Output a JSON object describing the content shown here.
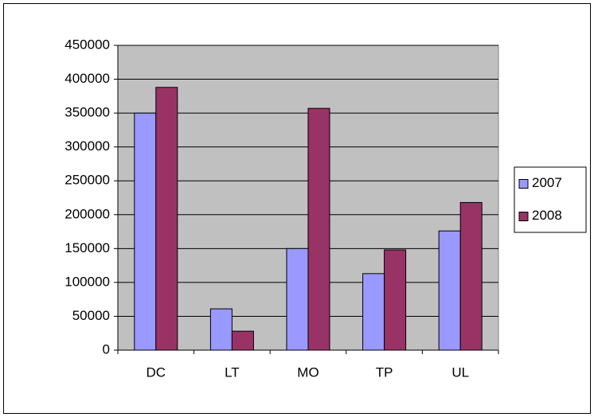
{
  "chart_data": {
    "type": "bar",
    "categories": [
      "DC",
      "LT",
      "MO",
      "TP",
      "UL"
    ],
    "series": [
      {
        "name": "2007",
        "color": "#9999ff",
        "values": [
          350000,
          61000,
          150000,
          113000,
          176000
        ]
      },
      {
        "name": "2008",
        "color": "#993366",
        "values": [
          388000,
          28000,
          357000,
          148000,
          218000
        ]
      }
    ],
    "ylim": [
      0,
      450000
    ],
    "yticks": [
      0,
      50000,
      100000,
      150000,
      200000,
      250000,
      300000,
      350000,
      400000,
      450000
    ],
    "grid": true,
    "legend": "right"
  }
}
